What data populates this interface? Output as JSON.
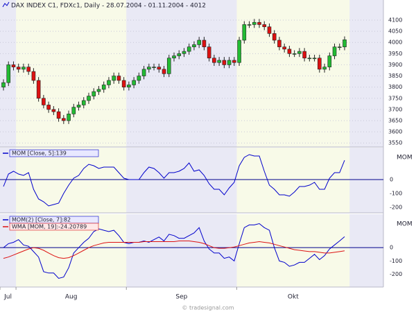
{
  "chart_data": [
    {
      "type": "candlestick",
      "title": "DAX INDEX C1, FDXc1, Daily - 28.07.2004 - 01.11.2004 - 4012",
      "open": [
        3800,
        3820,
        3900,
        3890,
        3880,
        3890,
        3870,
        3830,
        3750,
        3720,
        3700,
        3690,
        3660,
        3650,
        3680,
        3710,
        3720,
        3740,
        3760,
        3780,
        3790,
        3810,
        3830,
        3850,
        3830,
        3800,
        3810,
        3830,
        3850,
        3880,
        3890,
        3890,
        3880,
        3860,
        3930,
        3940,
        3950,
        3960,
        3980,
        3990,
        4010,
        3980,
        3930,
        3910,
        3920,
        3900,
        3920,
        3910,
        4010,
        4080,
        4080,
        4090,
        4080,
        4070,
        4040,
        4010,
        3980,
        3970,
        3950,
        3950,
        3960,
        3930,
        3930,
        3930,
        3880,
        3890,
        3940,
        3980,
        3980
      ],
      "high": [
        3835,
        3915,
        3915,
        3905,
        3905,
        3905,
        3885,
        3845,
        3765,
        3735,
        3715,
        3705,
        3675,
        3695,
        3725,
        3735,
        3755,
        3775,
        3795,
        3805,
        3825,
        3845,
        3865,
        3865,
        3845,
        3825,
        3845,
        3865,
        3895,
        3905,
        3905,
        3905,
        3895,
        3945,
        3955,
        3965,
        3975,
        3995,
        4005,
        4025,
        4025,
        3995,
        3945,
        3935,
        3935,
        3935,
        3935,
        4025,
        4095,
        4095,
        4105,
        4105,
        4095,
        4085,
        4055,
        4025,
        3995,
        3985,
        3965,
        3975,
        3975,
        3945,
        3945,
        3945,
        3905,
        3955,
        3995,
        3995,
        4027
      ],
      "low": [
        3785,
        3805,
        3875,
        3865,
        3865,
        3855,
        3815,
        3735,
        3705,
        3685,
        3675,
        3645,
        3635,
        3635,
        3665,
        3695,
        3705,
        3725,
        3745,
        3765,
        3775,
        3795,
        3815,
        3815,
        3785,
        3785,
        3795,
        3815,
        3835,
        3865,
        3875,
        3865,
        3845,
        3845,
        3915,
        3925,
        3935,
        3945,
        3965,
        3975,
        3965,
        3915,
        3895,
        3895,
        3885,
        3885,
        3895,
        3895,
        3995,
        4065,
        4065,
        4065,
        4055,
        4025,
        3995,
        3965,
        3955,
        3935,
        3935,
        3935,
        3915,
        3915,
        3915,
        3865,
        3865,
        3875,
        3925,
        3965,
        3965
      ],
      "close": [
        3820,
        3900,
        3890,
        3880,
        3890,
        3870,
        3830,
        3750,
        3720,
        3700,
        3690,
        3660,
        3650,
        3680,
        3710,
        3720,
        3740,
        3760,
        3780,
        3790,
        3810,
        3830,
        3850,
        3830,
        3800,
        3810,
        3830,
        3850,
        3880,
        3890,
        3890,
        3880,
        3860,
        3930,
        3940,
        3950,
        3960,
        3980,
        3990,
        4010,
        3980,
        3930,
        3910,
        3920,
        3900,
        3920,
        3910,
        4010,
        4080,
        4080,
        4090,
        4080,
        4070,
        4040,
        4010,
        3980,
        3970,
        3950,
        3950,
        3960,
        3930,
        3930,
        3930,
        3880,
        3890,
        3940,
        3980,
        3980,
        4012
      ],
      "up_color": "#22bb33",
      "down_color": "#dd1111",
      "xlim": [
        0,
        68
      ],
      "xticks": [
        {
          "value": 0,
          "label": "Jul"
        },
        {
          "value": 3,
          "label": "Aug"
        },
        {
          "value": 25,
          "label": "Sep"
        },
        {
          "value": 47,
          "label": "Okt"
        }
      ],
      "ylim": [
        3532,
        4190
      ],
      "yticks": [
        3550,
        3600,
        3650,
        3700,
        3750,
        3800,
        3850,
        3900,
        3950,
        4000,
        4050,
        4100
      ],
      "grid": true
    },
    {
      "type": "line",
      "ylabel": "MOM",
      "ylim": [
        -240,
        230
      ],
      "yticks": [
        0,
        -100,
        -200
      ],
      "zero_line": 0,
      "series": [
        {
          "name": "MOM [Close, 5]:139",
          "color": "#0000cc",
          "values": [
            -50,
            40,
            60,
            40,
            30,
            50,
            -70,
            -140,
            -160,
            -190,
            -180,
            -170,
            -100,
            -40,
            10,
            30,
            80,
            110,
            100,
            80,
            90,
            90,
            90,
            50,
            10,
            0,
            0,
            0,
            50,
            90,
            80,
            50,
            10,
            50,
            50,
            60,
            80,
            120,
            60,
            70,
            30,
            -30,
            -70,
            -70,
            -110,
            -60,
            -20,
            100,
            160,
            180,
            170,
            170,
            60,
            -40,
            -70,
            -110,
            -110,
            -120,
            -90,
            -50,
            -50,
            -40,
            -20,
            -70,
            -70,
            10,
            50,
            50,
            139
          ]
        }
      ]
    },
    {
      "type": "line",
      "ylabel": "MOM",
      "ylim": [
        -295,
        250
      ],
      "yticks": [
        0,
        -100,
        -200
      ],
      "zero_line": 0,
      "series": [
        {
          "name": "MOM(2) [Close, 7]:82",
          "color": "#0000cc",
          "values": [
            0,
            30,
            40,
            60,
            20,
            10,
            -30,
            -70,
            -180,
            -190,
            -190,
            -230,
            -220,
            -150,
            -40,
            0,
            40,
            70,
            120,
            140,
            130,
            120,
            130,
            90,
            40,
            30,
            40,
            40,
            50,
            40,
            60,
            80,
            50,
            100,
            90,
            70,
            70,
            90,
            110,
            150,
            50,
            -10,
            -40,
            -40,
            -80,
            -70,
            -100,
            30,
            150,
            170,
            170,
            180,
            150,
            130,
            0,
            -100,
            -110,
            -140,
            -130,
            -110,
            -110,
            -80,
            -50,
            -90,
            -60,
            -10,
            20,
            50,
            82
          ]
        },
        {
          "name": "WMA [MOM, 19]:-24.20789",
          "color": "#dd1111",
          "values": [
            -80,
            -70,
            -55,
            -40,
            -25,
            -10,
            0,
            -5,
            -20,
            -40,
            -60,
            -75,
            -80,
            -75,
            -60,
            -40,
            -20,
            0,
            15,
            25,
            35,
            40,
            40,
            40,
            40,
            40,
            40,
            40,
            45,
            45,
            45,
            45,
            45,
            45,
            45,
            50,
            50,
            50,
            45,
            40,
            30,
            15,
            0,
            -5,
            -5,
            0,
            5,
            15,
            25,
            35,
            40,
            45,
            40,
            35,
            25,
            15,
            5,
            -5,
            -15,
            -20,
            -25,
            -30,
            -30,
            -35,
            -40,
            -40,
            -35,
            -30,
            -24.20789
          ]
        }
      ]
    }
  ],
  "footer": "© tradesignal.com"
}
